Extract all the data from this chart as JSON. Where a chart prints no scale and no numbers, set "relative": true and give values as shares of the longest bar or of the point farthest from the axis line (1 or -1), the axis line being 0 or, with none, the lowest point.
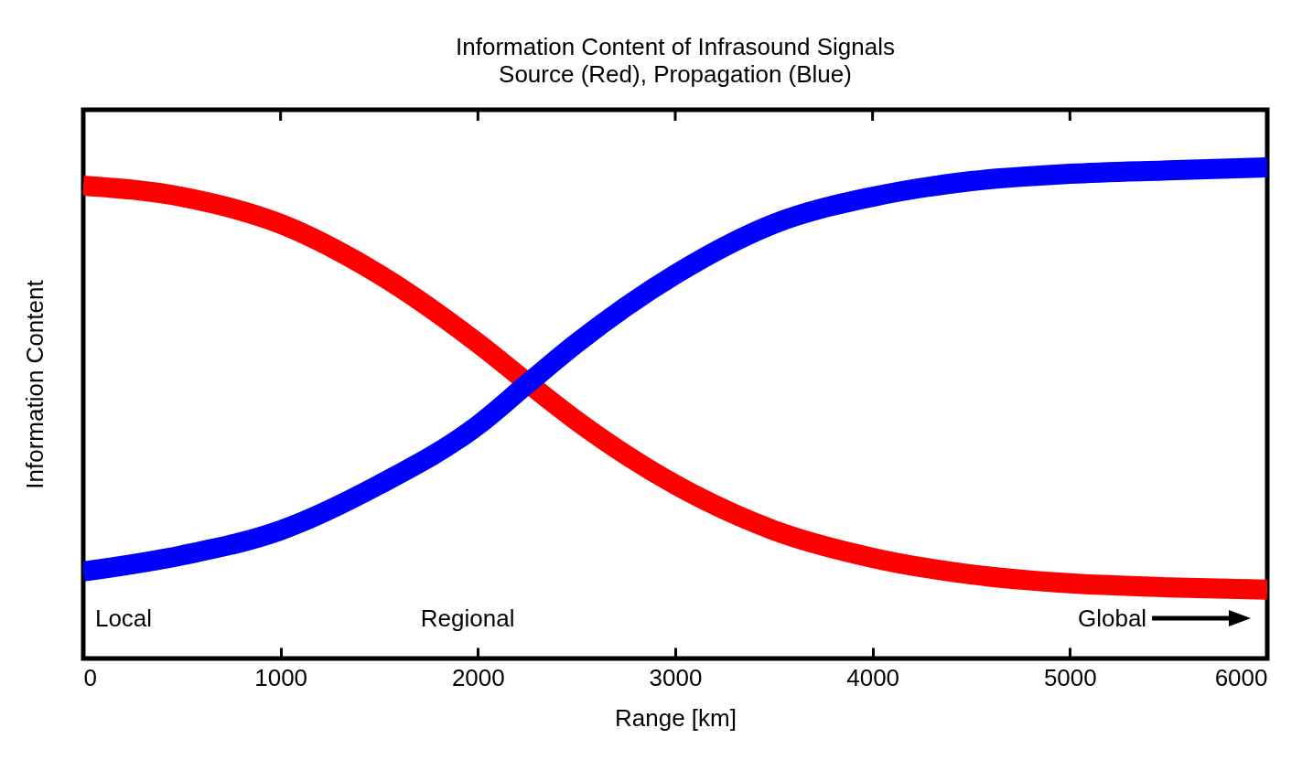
{
  "chart_data": {
    "type": "line",
    "title": "Information Content of Infrasound Signals",
    "subtitle": "Source (Red), Propagation (Blue)",
    "xlabel": "Range [km]",
    "ylabel": "Information Content",
    "relative": true,
    "x": [
      0,
      500,
      1000,
      1500,
      2000,
      2250,
      2500,
      3000,
      3500,
      4000,
      4500,
      5000,
      5500,
      6000
    ],
    "series": [
      {
        "color": "#ff0000",
        "values": [
          0.963,
          0.94,
          0.885,
          0.782,
          0.642,
          0.562,
          0.484,
          0.354,
          0.261,
          0.205,
          0.171,
          0.153,
          0.145,
          0.14
        ]
      },
      {
        "color": "#0000ff",
        "values": [
          0.177,
          0.21,
          0.261,
          0.354,
          0.475,
          0.559,
          0.642,
          0.782,
          0.885,
          0.94,
          0.972,
          0.987,
          0.994,
          1
        ]
      }
    ],
    "xlim": [
      0,
      6000
    ],
    "xticks": [
      0,
      1000,
      2000,
      3000,
      4000,
      5000,
      6000
    ],
    "annotations": [
      "Local",
      "Regional",
      "Global"
    ]
  }
}
